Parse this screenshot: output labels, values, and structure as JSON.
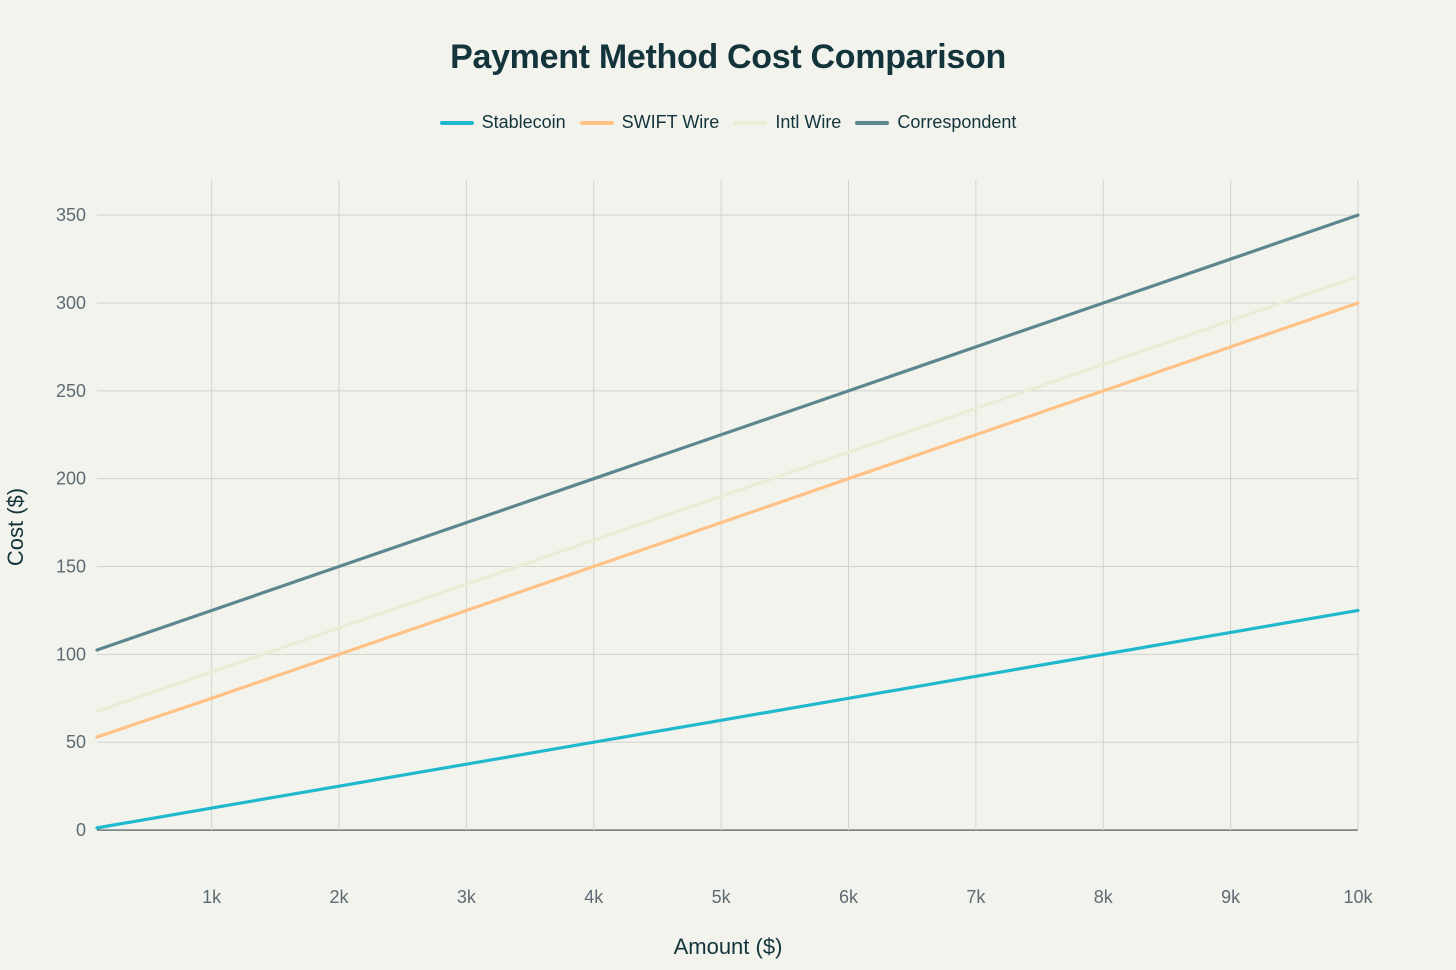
{
  "chart_data": {
    "type": "line",
    "title": "Payment Method Cost Comparison",
    "xlabel": "Amount ($)",
    "ylabel": "Cost ($)",
    "xlim": [
      100,
      10000
    ],
    "ylim": [
      -25,
      370
    ],
    "x_ticks": [
      1000,
      2000,
      3000,
      4000,
      5000,
      6000,
      7000,
      8000,
      9000,
      10000
    ],
    "x_tick_labels": [
      "1k",
      "2k",
      "3k",
      "4k",
      "5k",
      "6k",
      "7k",
      "8k",
      "9k",
      "10k"
    ],
    "y_ticks": [
      0,
      50,
      100,
      150,
      200,
      250,
      300,
      350
    ],
    "y_tick_labels": [
      "0",
      "50",
      "100",
      "150",
      "200",
      "250",
      "300",
      "350"
    ],
    "grid": true,
    "legend_position": "top-center",
    "x": [
      100,
      1000,
      2000,
      3000,
      4000,
      5000,
      6000,
      7000,
      8000,
      9000,
      10000
    ],
    "series": [
      {
        "name": "Stablecoin",
        "color": "#1fb8cd",
        "values": [
          1.25,
          12.5,
          25,
          37.5,
          50,
          62.5,
          75,
          87.5,
          100,
          112.5,
          125
        ]
      },
      {
        "name": "SWIFT Wire",
        "color": "#ffc185",
        "values": [
          53,
          75,
          100,
          125,
          150,
          175,
          200,
          225,
          250,
          275,
          300
        ]
      },
      {
        "name": "Intl Wire",
        "color": "#ecebd5",
        "values": [
          67.5,
          90,
          115,
          140,
          165,
          190,
          215,
          240,
          265,
          290,
          315
        ]
      },
      {
        "name": "Correspondent",
        "color": "#5d878f",
        "values": [
          102.5,
          125,
          150,
          175,
          200,
          225,
          250,
          275,
          300,
          325,
          350
        ]
      }
    ]
  }
}
